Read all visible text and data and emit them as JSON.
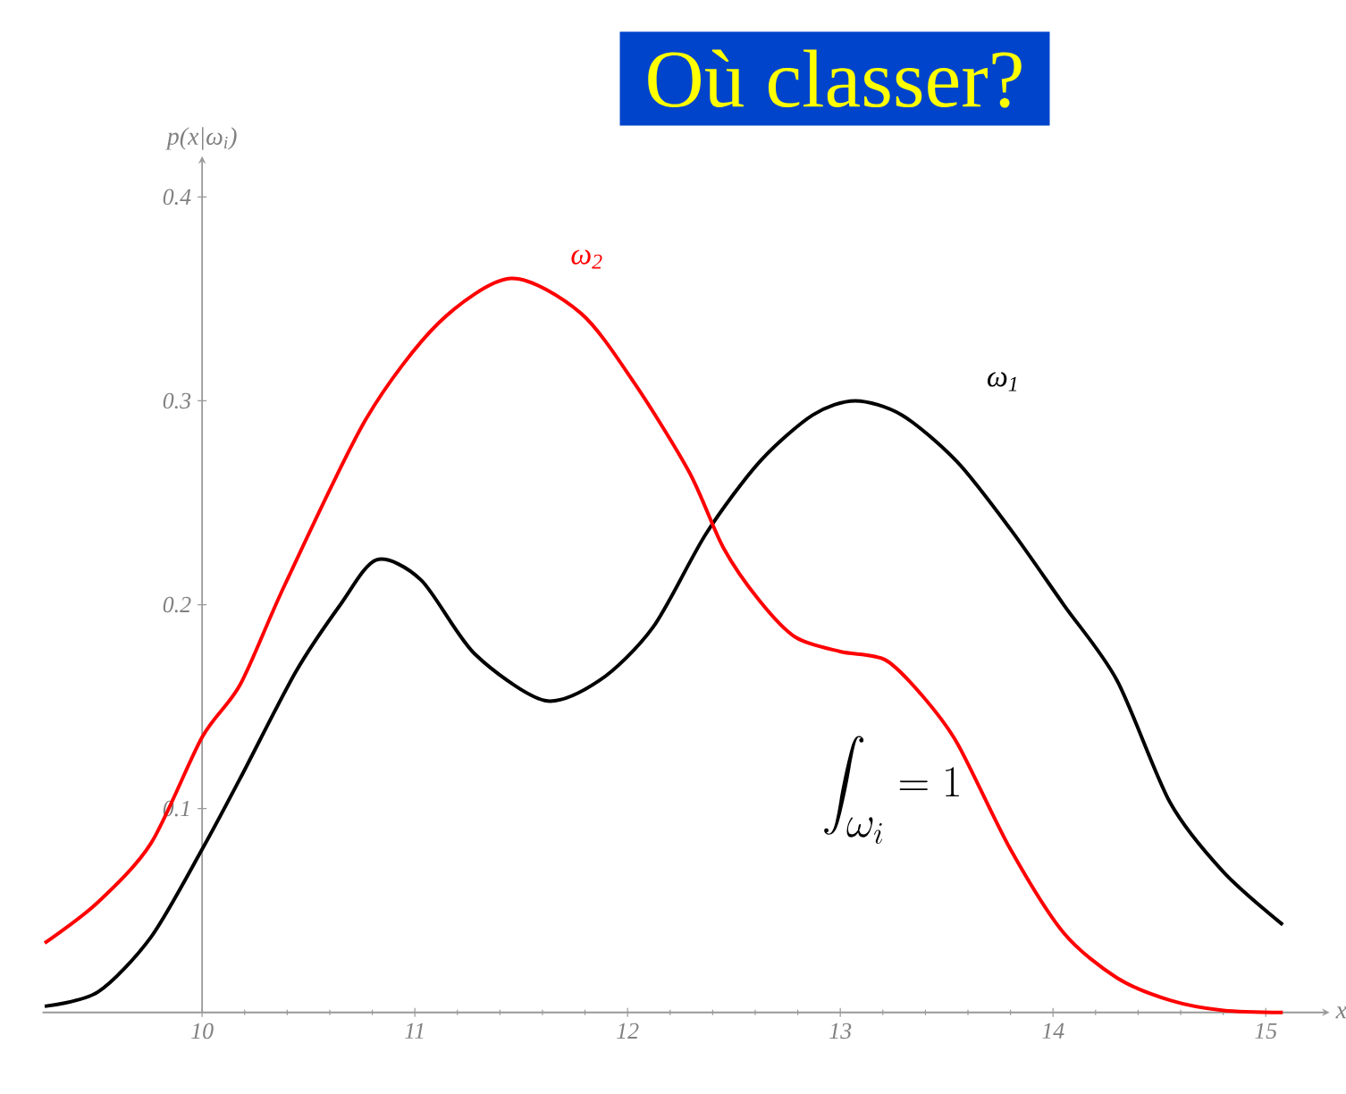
{
  "chart_data": {
    "type": "line",
    "title": "Où classer?",
    "xlabel": "x",
    "ylabel": "p(x|ω$_{i}$)",
    "annotations": [
      "\\int_{\\omega_i} = 1"
    ],
    "xlim": [
      9.25,
      15.3
    ],
    "ylim": [
      0,
      0.42
    ],
    "xticks": [
      10,
      11,
      12,
      13,
      14,
      15
    ],
    "yticks": [
      0.1,
      0.2,
      0.3,
      0.4
    ],
    "grid": false,
    "legend": false,
    "marker": "none",
    "line_style": "solid",
    "series": [
      {
        "name": "ω$_{1}$",
        "color": "#000000",
        "x": [
          9.26,
          9.51,
          9.76,
          10.0,
          10.18,
          10.44,
          10.65,
          10.82,
          11.03,
          11.28,
          11.61,
          11.87,
          12.12,
          12.37,
          12.62,
          12.87,
          13.07,
          13.29,
          13.55,
          13.8,
          14.05,
          14.3,
          14.55,
          14.8,
          15.08
        ],
        "values": [
          0.003,
          0.01,
          0.037,
          0.08,
          0.115,
          0.167,
          0.2,
          0.222,
          0.212,
          0.176,
          0.153,
          0.163,
          0.189,
          0.235,
          0.27,
          0.293,
          0.3,
          0.293,
          0.27,
          0.237,
          0.2,
          0.163,
          0.103,
          0.069,
          0.043
        ]
      },
      {
        "name": "ω$_{2}$",
        "color": "#ff0000",
        "x": [
          9.26,
          9.51,
          9.76,
          10.0,
          10.18,
          10.39,
          10.77,
          11.11,
          11.45,
          11.78,
          12.03,
          12.29,
          12.45,
          12.62,
          12.79,
          13.0,
          13.21,
          13.38,
          13.55,
          13.8,
          14.05,
          14.3,
          14.55,
          14.8,
          15.08
        ],
        "values": [
          0.034,
          0.054,
          0.083,
          0.135,
          0.161,
          0.21,
          0.291,
          0.338,
          0.36,
          0.343,
          0.309,
          0.265,
          0.228,
          0.202,
          0.184,
          0.177,
          0.173,
          0.156,
          0.132,
          0.08,
          0.039,
          0.017,
          0.006,
          0.001,
          0.0
        ]
      }
    ]
  }
}
